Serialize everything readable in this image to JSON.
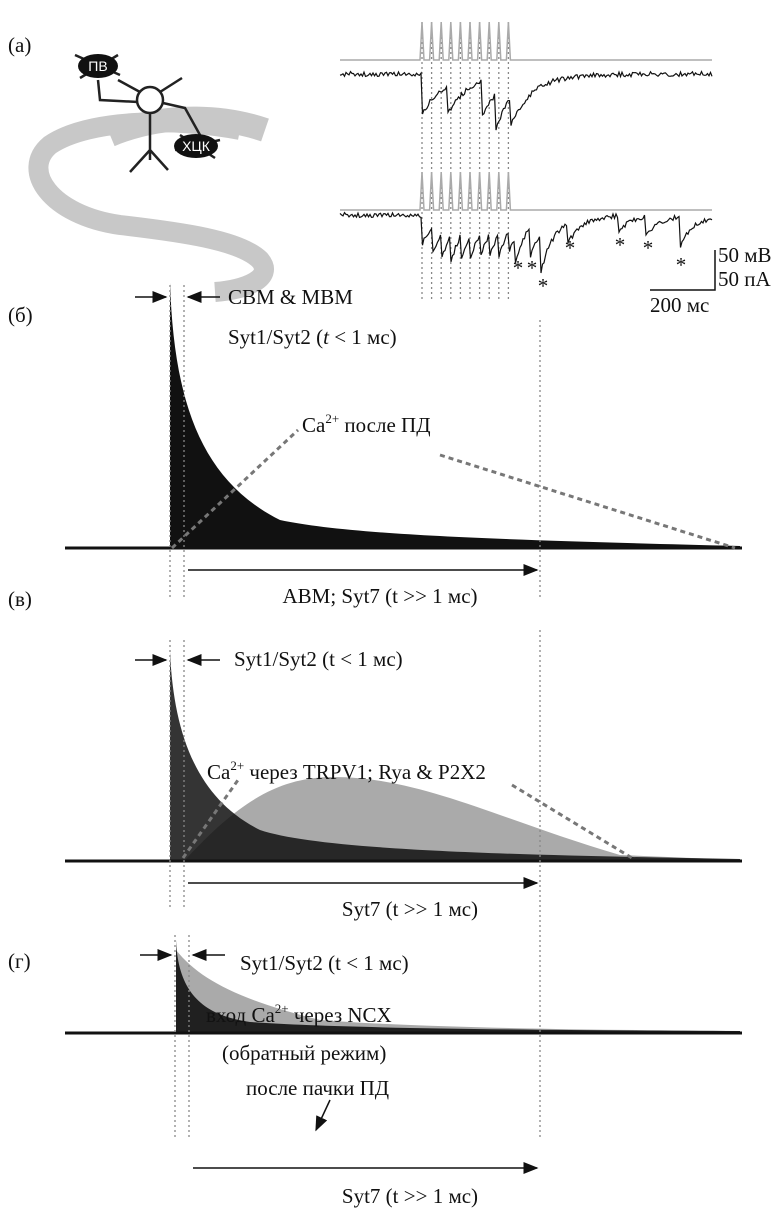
{
  "panel_a": {
    "label": "(a)",
    "cells": [
      "ПВ",
      "ХЦК"
    ],
    "asterisks": [
      "*",
      "*",
      "*",
      "*",
      "*",
      "*",
      "*"
    ],
    "scale": {
      "voltage": "50 мВ",
      "current": "50 пА",
      "time": "200 мс"
    }
  },
  "panel_b": {
    "label": "(б)",
    "arrow_label": "CBM & MBM",
    "fast": [
      "Syt1/Syt2 (",
      "t",
      " < 1 мс)"
    ],
    "calcium": [
      "Ca",
      "2+",
      " после ПД"
    ],
    "slow": "ABM; Syt7 (t >> 1 мс)"
  },
  "panel_c": {
    "label": "(в)",
    "fast": "Syt1/Syt2 (t < 1 мс)",
    "calcium": [
      "Ca",
      "2+",
      " через TRPV1; Rya & P2X2"
    ],
    "slow": "Syt7 (t >> 1 мс)"
  },
  "panel_d": {
    "label": "(г)",
    "fast": "Syt1/Syt2 (t < 1 мс)",
    "calcium": [
      "вход Ca",
      "2+",
      " через NCX"
    ],
    "calcium_mode": "(обратный режим)",
    "calcium_note": "после пачки ПД",
    "slow": "Syt7 (t >> 1 мс)"
  }
}
